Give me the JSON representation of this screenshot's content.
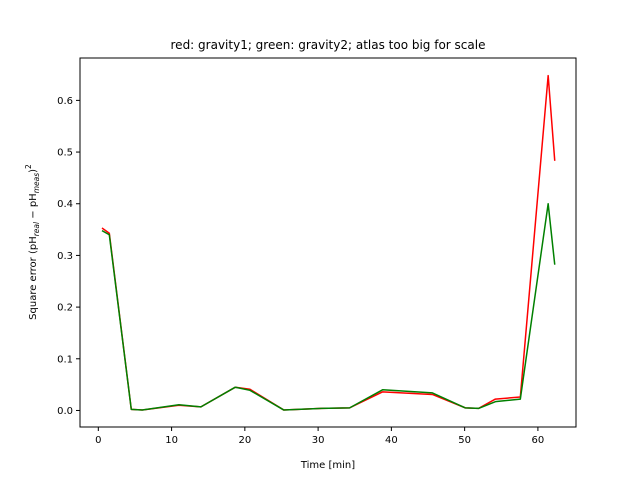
{
  "chart_data": {
    "type": "line",
    "title": "red: gravity1; green: gravity2; atlas too big for scale",
    "xlabel": "Time [min]",
    "ylabel": "Square error (pH",
    "ylabel_sub1": "real",
    "ylabel_mid": " − pH",
    "ylabel_sub2": "meas",
    "ylabel_tail": ")",
    "ylabel_sup": "2",
    "xlim": [
      -2.5,
      65.2
    ],
    "ylim": [
      -0.032,
      0.682
    ],
    "xticks": [
      0,
      10,
      20,
      30,
      40,
      50,
      60
    ],
    "yticks": [
      0.0,
      0.1,
      0.2,
      0.3,
      0.4,
      0.5,
      0.6
    ],
    "xtick_labels": [
      "0",
      "10",
      "20",
      "30",
      "40",
      "50",
      "60"
    ],
    "ytick_labels": [
      "0.0",
      "0.1",
      "0.2",
      "0.3",
      "0.4",
      "0.5",
      "0.6"
    ],
    "series": [
      {
        "color": "#ff0000",
        "x": [
          0.5,
          1.5,
          4.5,
          6.0,
          11.0,
          14.0,
          18.7,
          20.7,
          25.3,
          30.5,
          34.3,
          38.8,
          45.6,
          50.1,
          51.9,
          54.2,
          57.6,
          61.4,
          62.3
        ],
        "y": [
          0.353,
          0.343,
          0.002,
          0.001,
          0.01,
          0.007,
          0.045,
          0.041,
          0.001,
          0.004,
          0.005,
          0.036,
          0.031,
          0.005,
          0.004,
          0.022,
          0.026,
          0.648,
          0.483
        ]
      },
      {
        "color": "#008000",
        "x": [
          0.5,
          1.5,
          4.5,
          6.0,
          11.0,
          14.0,
          18.7,
          20.7,
          25.3,
          30.5,
          34.3,
          38.8,
          45.6,
          50.1,
          51.9,
          54.2,
          57.6,
          61.4,
          62.3
        ],
        "y": [
          0.348,
          0.34,
          0.002,
          0.001,
          0.011,
          0.007,
          0.045,
          0.039,
          0.001,
          0.004,
          0.005,
          0.04,
          0.034,
          0.005,
          0.004,
          0.017,
          0.022,
          0.4,
          0.282
        ]
      }
    ]
  }
}
